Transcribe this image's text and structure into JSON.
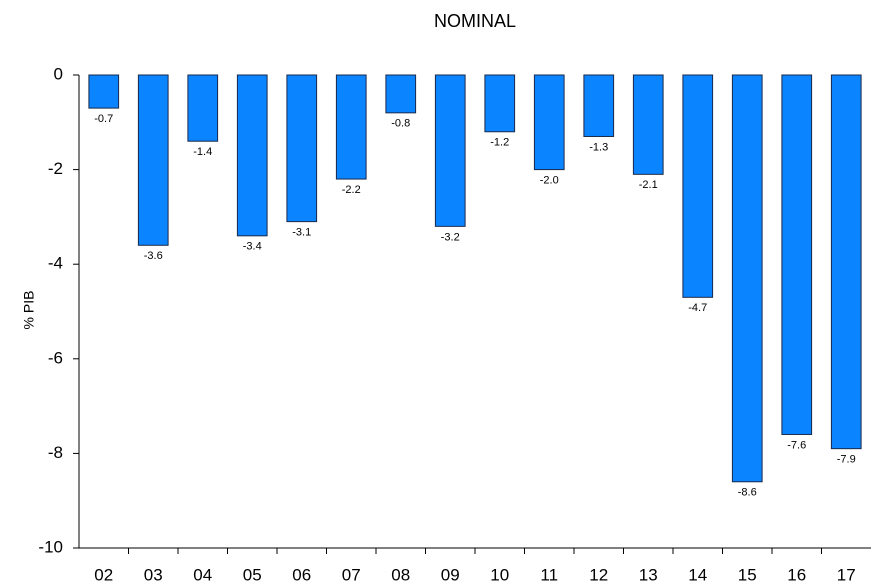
{
  "chart_data": {
    "type": "bar",
    "title": "NOMINAL",
    "y_label": "% PIB",
    "categories": [
      "02",
      "03",
      "04",
      "05",
      "06",
      "07",
      "08",
      "09",
      "10",
      "11",
      "12",
      "13",
      "14",
      "15",
      "16",
      "17"
    ],
    "values": [
      -0.7,
      -3.6,
      -1.4,
      -3.4,
      -3.1,
      -2.2,
      -0.8,
      -3.2,
      -1.2,
      -2.0,
      -1.3,
      -2.1,
      -4.7,
      -8.6,
      -7.6,
      -7.9
    ],
    "value_labels": [
      "-0.7",
      "-3.6",
      "-1.4",
      "-3.4",
      "-3.1",
      "-2.2",
      "-0.8",
      "-3.2",
      "-1.2",
      "-2.0",
      "-1.3",
      "-2.1",
      "-4.7",
      "-8.6",
      "-7.6",
      "-7.9"
    ],
    "color": "#0a84ff",
    "ylim": [
      -10,
      0
    ],
    "yticks": [
      0,
      -2,
      -4,
      -6,
      -8,
      -10
    ],
    "grid": false
  }
}
